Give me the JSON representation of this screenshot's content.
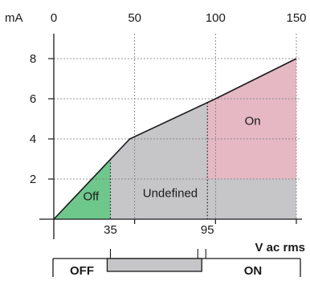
{
  "chart_data": {
    "type": "line",
    "y_unit": "mA",
    "x_unit": "V ac rms",
    "xlim": [
      0,
      150
    ],
    "ylim": [
      0,
      8
    ],
    "x_ticks_top": [
      "0",
      "50",
      "100",
      "150"
    ],
    "y_ticks": [
      "2",
      "4",
      "6",
      "8"
    ],
    "x_marks_bottom": [
      "35",
      "95"
    ],
    "grid": true,
    "series": [
      {
        "x": [
          0,
          47,
          100,
          150
        ],
        "y": [
          0,
          4,
          6,
          8
        ]
      }
    ],
    "thresholds": {
      "off_max": 35,
      "on_min": 95
    },
    "regions": [
      {
        "label": "Off",
        "color": "#6ec88c"
      },
      {
        "label": "Undefined",
        "color": "#c6c6c9"
      },
      {
        "label": "On",
        "color": "#e5b8c4"
      }
    ],
    "state_bar": {
      "off_label": "OFF",
      "on_label": "ON"
    }
  }
}
